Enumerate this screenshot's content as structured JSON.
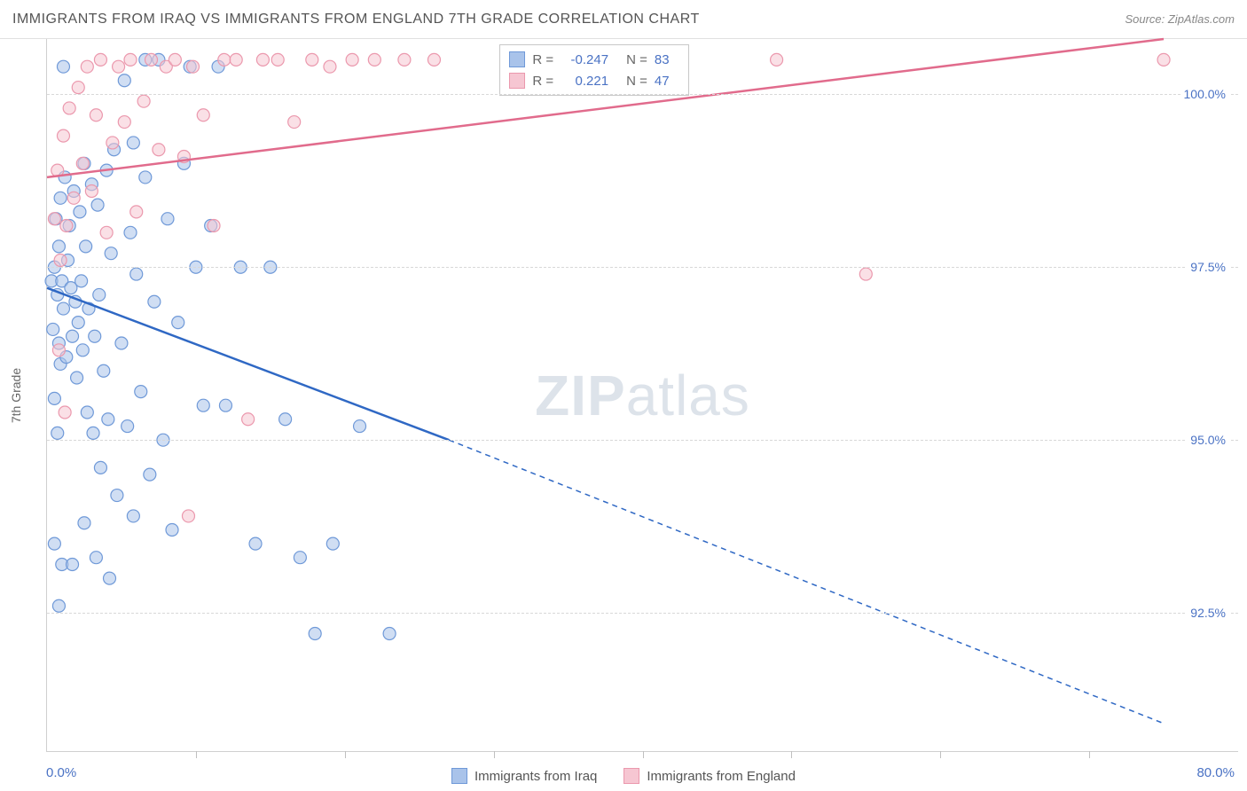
{
  "header": {
    "title": "IMMIGRANTS FROM IRAQ VS IMMIGRANTS FROM ENGLAND 7TH GRADE CORRELATION CHART",
    "source_label": "Source: ",
    "source_name": "ZipAtlas.com"
  },
  "watermark": {
    "bold": "ZIP",
    "light": "atlas"
  },
  "axes": {
    "ylabel": "7th Grade",
    "x_min_label": "0.0%",
    "x_max_label": "80.0%",
    "x_min": 0.0,
    "x_max": 80.0,
    "y_min": 90.5,
    "y_max": 100.8,
    "y_ticks": [
      92.5,
      95.0,
      97.5,
      100.0
    ],
    "y_tick_labels": [
      "92.5%",
      "95.0%",
      "97.5%",
      "100.0%"
    ],
    "x_tick_step": 10,
    "grid_color": "#d8d8d8"
  },
  "series": [
    {
      "id": "iraq",
      "legend_label": "Immigrants from Iraq",
      "fill": "#a9c3ea",
      "stroke": "#6f99d8",
      "line": "#2f68c4",
      "r_value": "-0.247",
      "n_value": "83",
      "reg_start": {
        "x": 0.0,
        "y": 97.2
      },
      "reg_solid_end": {
        "x": 27.0,
        "y": 95.0
      },
      "reg_end": {
        "x": 75.0,
        "y": 90.9
      },
      "points": [
        [
          0.3,
          97.3
        ],
        [
          0.4,
          96.6
        ],
        [
          0.5,
          97.5
        ],
        [
          0.5,
          95.6
        ],
        [
          0.6,
          98.2
        ],
        [
          0.7,
          97.1
        ],
        [
          0.7,
          95.1
        ],
        [
          0.8,
          96.4
        ],
        [
          0.8,
          97.8
        ],
        [
          0.9,
          96.1
        ],
        [
          0.9,
          98.5
        ],
        [
          1.0,
          97.3
        ],
        [
          1.1,
          96.9
        ],
        [
          1.2,
          98.8
        ],
        [
          1.3,
          96.2
        ],
        [
          1.4,
          97.6
        ],
        [
          1.5,
          98.1
        ],
        [
          1.6,
          97.2
        ],
        [
          1.7,
          96.5
        ],
        [
          1.8,
          98.6
        ],
        [
          1.9,
          97.0
        ],
        [
          2.0,
          95.9
        ],
        [
          2.1,
          96.7
        ],
        [
          2.2,
          98.3
        ],
        [
          2.3,
          97.3
        ],
        [
          2.4,
          96.3
        ],
        [
          2.5,
          99.0
        ],
        [
          2.6,
          97.8
        ],
        [
          2.7,
          95.4
        ],
        [
          2.8,
          96.9
        ],
        [
          3.0,
          98.7
        ],
        [
          3.1,
          95.1
        ],
        [
          3.2,
          96.5
        ],
        [
          3.4,
          98.4
        ],
        [
          3.5,
          97.1
        ],
        [
          3.6,
          94.6
        ],
        [
          3.8,
          96.0
        ],
        [
          4.0,
          98.9
        ],
        [
          4.1,
          95.3
        ],
        [
          4.3,
          97.7
        ],
        [
          4.5,
          99.2
        ],
        [
          4.7,
          94.2
        ],
        [
          5.0,
          96.4
        ],
        [
          5.2,
          100.2
        ],
        [
          5.4,
          95.2
        ],
        [
          5.6,
          98.0
        ],
        [
          5.8,
          93.9
        ],
        [
          6.0,
          97.4
        ],
        [
          6.3,
          95.7
        ],
        [
          6.6,
          98.8
        ],
        [
          6.9,
          94.5
        ],
        [
          7.2,
          97.0
        ],
        [
          7.5,
          100.5
        ],
        [
          7.8,
          95.0
        ],
        [
          8.1,
          98.2
        ],
        [
          8.4,
          93.7
        ],
        [
          8.8,
          96.7
        ],
        [
          9.2,
          99.0
        ],
        [
          9.6,
          100.4
        ],
        [
          10.0,
          97.5
        ],
        [
          10.5,
          95.5
        ],
        [
          11.0,
          98.1
        ],
        [
          11.5,
          100.4
        ],
        [
          12.0,
          95.5
        ],
        [
          13.0,
          97.5
        ],
        [
          14.0,
          93.5
        ],
        [
          15.0,
          97.5
        ],
        [
          16.0,
          95.3
        ],
        [
          17.0,
          93.3
        ],
        [
          18.0,
          92.2
        ],
        [
          19.2,
          93.5
        ],
        [
          21.0,
          95.2
        ],
        [
          23.0,
          92.2
        ],
        [
          1.0,
          93.2
        ],
        [
          2.5,
          93.8
        ],
        [
          3.3,
          93.3
        ],
        [
          4.2,
          93.0
        ],
        [
          1.7,
          93.2
        ],
        [
          5.8,
          99.3
        ],
        [
          6.6,
          100.5
        ],
        [
          0.5,
          93.5
        ],
        [
          0.8,
          92.6
        ],
        [
          1.1,
          100.4
        ]
      ]
    },
    {
      "id": "england",
      "legend_label": "Immigrants from England",
      "fill": "#f6c6d2",
      "stroke": "#eb98ad",
      "line": "#e16b8c",
      "r_value": "0.221",
      "n_value": "47",
      "reg_start": {
        "x": 0.0,
        "y": 98.8
      },
      "reg_solid_end": {
        "x": 75.0,
        "y": 100.8
      },
      "reg_end": {
        "x": 75.0,
        "y": 100.8
      },
      "points": [
        [
          0.5,
          98.2
        ],
        [
          0.7,
          98.9
        ],
        [
          0.9,
          97.6
        ],
        [
          1.1,
          99.4
        ],
        [
          1.3,
          98.1
        ],
        [
          1.5,
          99.8
        ],
        [
          1.8,
          98.5
        ],
        [
          2.1,
          100.1
        ],
        [
          2.4,
          99.0
        ],
        [
          2.7,
          100.4
        ],
        [
          3.0,
          98.6
        ],
        [
          3.3,
          99.7
        ],
        [
          3.6,
          100.5
        ],
        [
          4.0,
          98.0
        ],
        [
          4.4,
          99.3
        ],
        [
          4.8,
          100.4
        ],
        [
          5.2,
          99.6
        ],
        [
          5.6,
          100.5
        ],
        [
          6.0,
          98.3
        ],
        [
          6.5,
          99.9
        ],
        [
          7.0,
          100.5
        ],
        [
          7.5,
          99.2
        ],
        [
          8.0,
          100.4
        ],
        [
          8.6,
          100.5
        ],
        [
          9.2,
          99.1
        ],
        [
          9.8,
          100.4
        ],
        [
          10.5,
          99.7
        ],
        [
          11.2,
          98.1
        ],
        [
          11.9,
          100.5
        ],
        [
          12.7,
          100.5
        ],
        [
          13.5,
          95.3
        ],
        [
          14.5,
          100.5
        ],
        [
          15.5,
          100.5
        ],
        [
          16.6,
          99.6
        ],
        [
          17.8,
          100.5
        ],
        [
          19.0,
          100.4
        ],
        [
          20.5,
          100.5
        ],
        [
          22.0,
          100.5
        ],
        [
          24.0,
          100.5
        ],
        [
          26.0,
          100.5
        ],
        [
          33.0,
          100.5
        ],
        [
          9.5,
          93.9
        ],
        [
          49.0,
          100.5
        ],
        [
          0.8,
          96.3
        ],
        [
          1.2,
          95.4
        ],
        [
          55.0,
          97.4
        ],
        [
          75.0,
          100.5
        ]
      ]
    }
  ],
  "marker_radius": 7,
  "marker_opacity": 0.55,
  "bottom_legend_labels": {
    "iraq": "Immigrants from Iraq",
    "england": "Immigrants from England"
  },
  "stats_box": {
    "r_prefix": "R =",
    "n_prefix": "N ="
  }
}
